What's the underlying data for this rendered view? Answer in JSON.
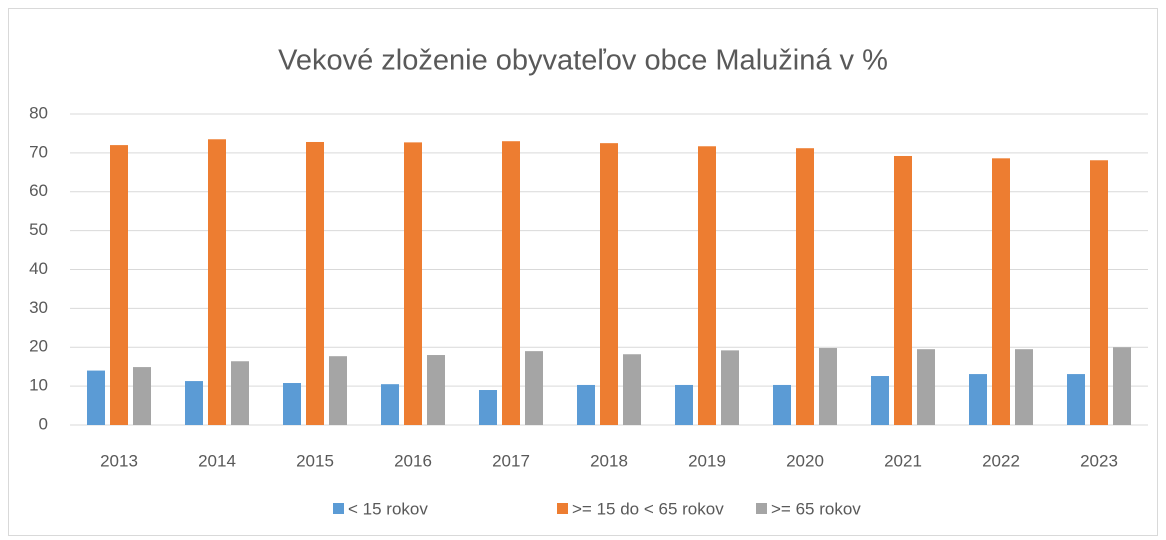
{
  "chart_data": {
    "type": "bar",
    "title": "Vekové zloženie obyvateľov obce Malužiná v %",
    "categories": [
      "2013",
      "2014",
      "2015",
      "2016",
      "2017",
      "2018",
      "2019",
      "2020",
      "2021",
      "2022",
      "2023"
    ],
    "series": [
      {
        "name": "< 15 rokov",
        "color": "#5b9bd5",
        "values": [
          14,
          11.3,
          10.8,
          10.5,
          9,
          10.3,
          10.3,
          10.3,
          12.6,
          13.1,
          13.1
        ]
      },
      {
        "name": ">= 15 do < 65 rokov",
        "color": "#ed7d31",
        "values": [
          72,
          73.5,
          72.8,
          72.7,
          73,
          72.5,
          71.7,
          71.2,
          69.2,
          68.6,
          68.1
        ]
      },
      {
        "name": ">= 65 rokov",
        "color": "#a5a5a5",
        "values": [
          14.9,
          16.4,
          17.7,
          18,
          19,
          18.2,
          19.2,
          19.8,
          19.5,
          19.5,
          20
        ]
      }
    ],
    "ylim": [
      0,
      80
    ],
    "yticks": [
      0,
      10,
      20,
      30,
      40,
      50,
      60,
      70,
      80
    ],
    "grid": true,
    "legend": "bottom"
  }
}
